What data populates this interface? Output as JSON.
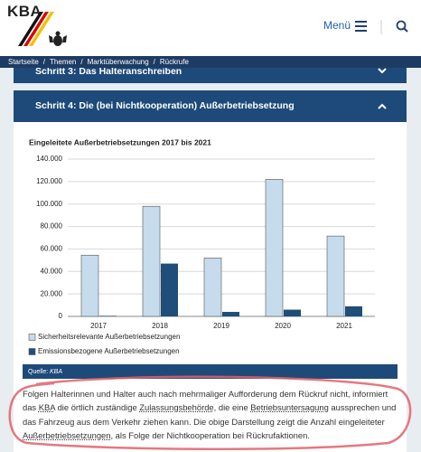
{
  "header": {
    "logo": "KBA",
    "menu": "Menü"
  },
  "breadcrumb": [
    "Startseite",
    "Themen",
    "Marktüberwachung",
    "Rückrufe"
  ],
  "accordions": [
    {
      "title": "Schritt 3: Das Halteranschreiben"
    },
    {
      "title": "Schritt 4: Die (bei Nichtkooperation) Außerbetriebsetzung"
    }
  ],
  "chart_data": {
    "type": "bar",
    "title": "Eingeleitete Außerbetriebsetzungen 2017 bis 2021",
    "categories": [
      "2017",
      "2018",
      "2019",
      "2020",
      "2021"
    ],
    "series": [
      {
        "name": "Sicherheitsrelevante Außerbetriebsetzungen",
        "color": "#c6dbec",
        "values": [
          54500,
          98000,
          52000,
          122000,
          71500
        ]
      },
      {
        "name": "Emissionsbezogene Außerbetriebsetzungen",
        "color": "#1f4e79",
        "values": [
          500,
          47000,
          4000,
          6000,
          9000
        ]
      }
    ],
    "ylim": [
      0,
      140000
    ],
    "yticks": [
      0,
      {
        "value": 20000,
        "label": "20.000"
      },
      {
        "value": 40000,
        "label": "40.000"
      },
      {
        "value": 60000,
        "label": "60.000"
      },
      {
        "value": 80000,
        "label": "80.000"
      },
      {
        "value": 100000,
        "label": "100.000"
      },
      {
        "value": 120000,
        "label": "120.000"
      },
      {
        "value": 140000,
        "label": "140.000"
      }
    ],
    "grid": true
  },
  "source": {
    "label": "Quelle:",
    "value": "KBA"
  },
  "paragraph": [
    {
      "text": "Folgen Halterinnen und Halter auch nach mehrmaliger Aufforderung dem Rückruf nicht, informiert das "
    },
    {
      "text": "KBA",
      "link": true
    },
    {
      "text": " die örtlich zuständige "
    },
    {
      "text": "Zulassungsbehörde",
      "link": true
    },
    {
      "text": ", die eine "
    },
    {
      "text": "Betriebsuntersagung",
      "link": true
    },
    {
      "text": " aussprechen und das Fahrzeug aus dem Verkehr ziehen kann. Die obige Darstellung zeigt die Anzahl eingeleiteter "
    },
    {
      "text": "Außerbetriebsetzungen",
      "link": true
    },
    {
      "text": ", als Folge der Nichtkooperation bei Rückrufaktionen."
    }
  ]
}
